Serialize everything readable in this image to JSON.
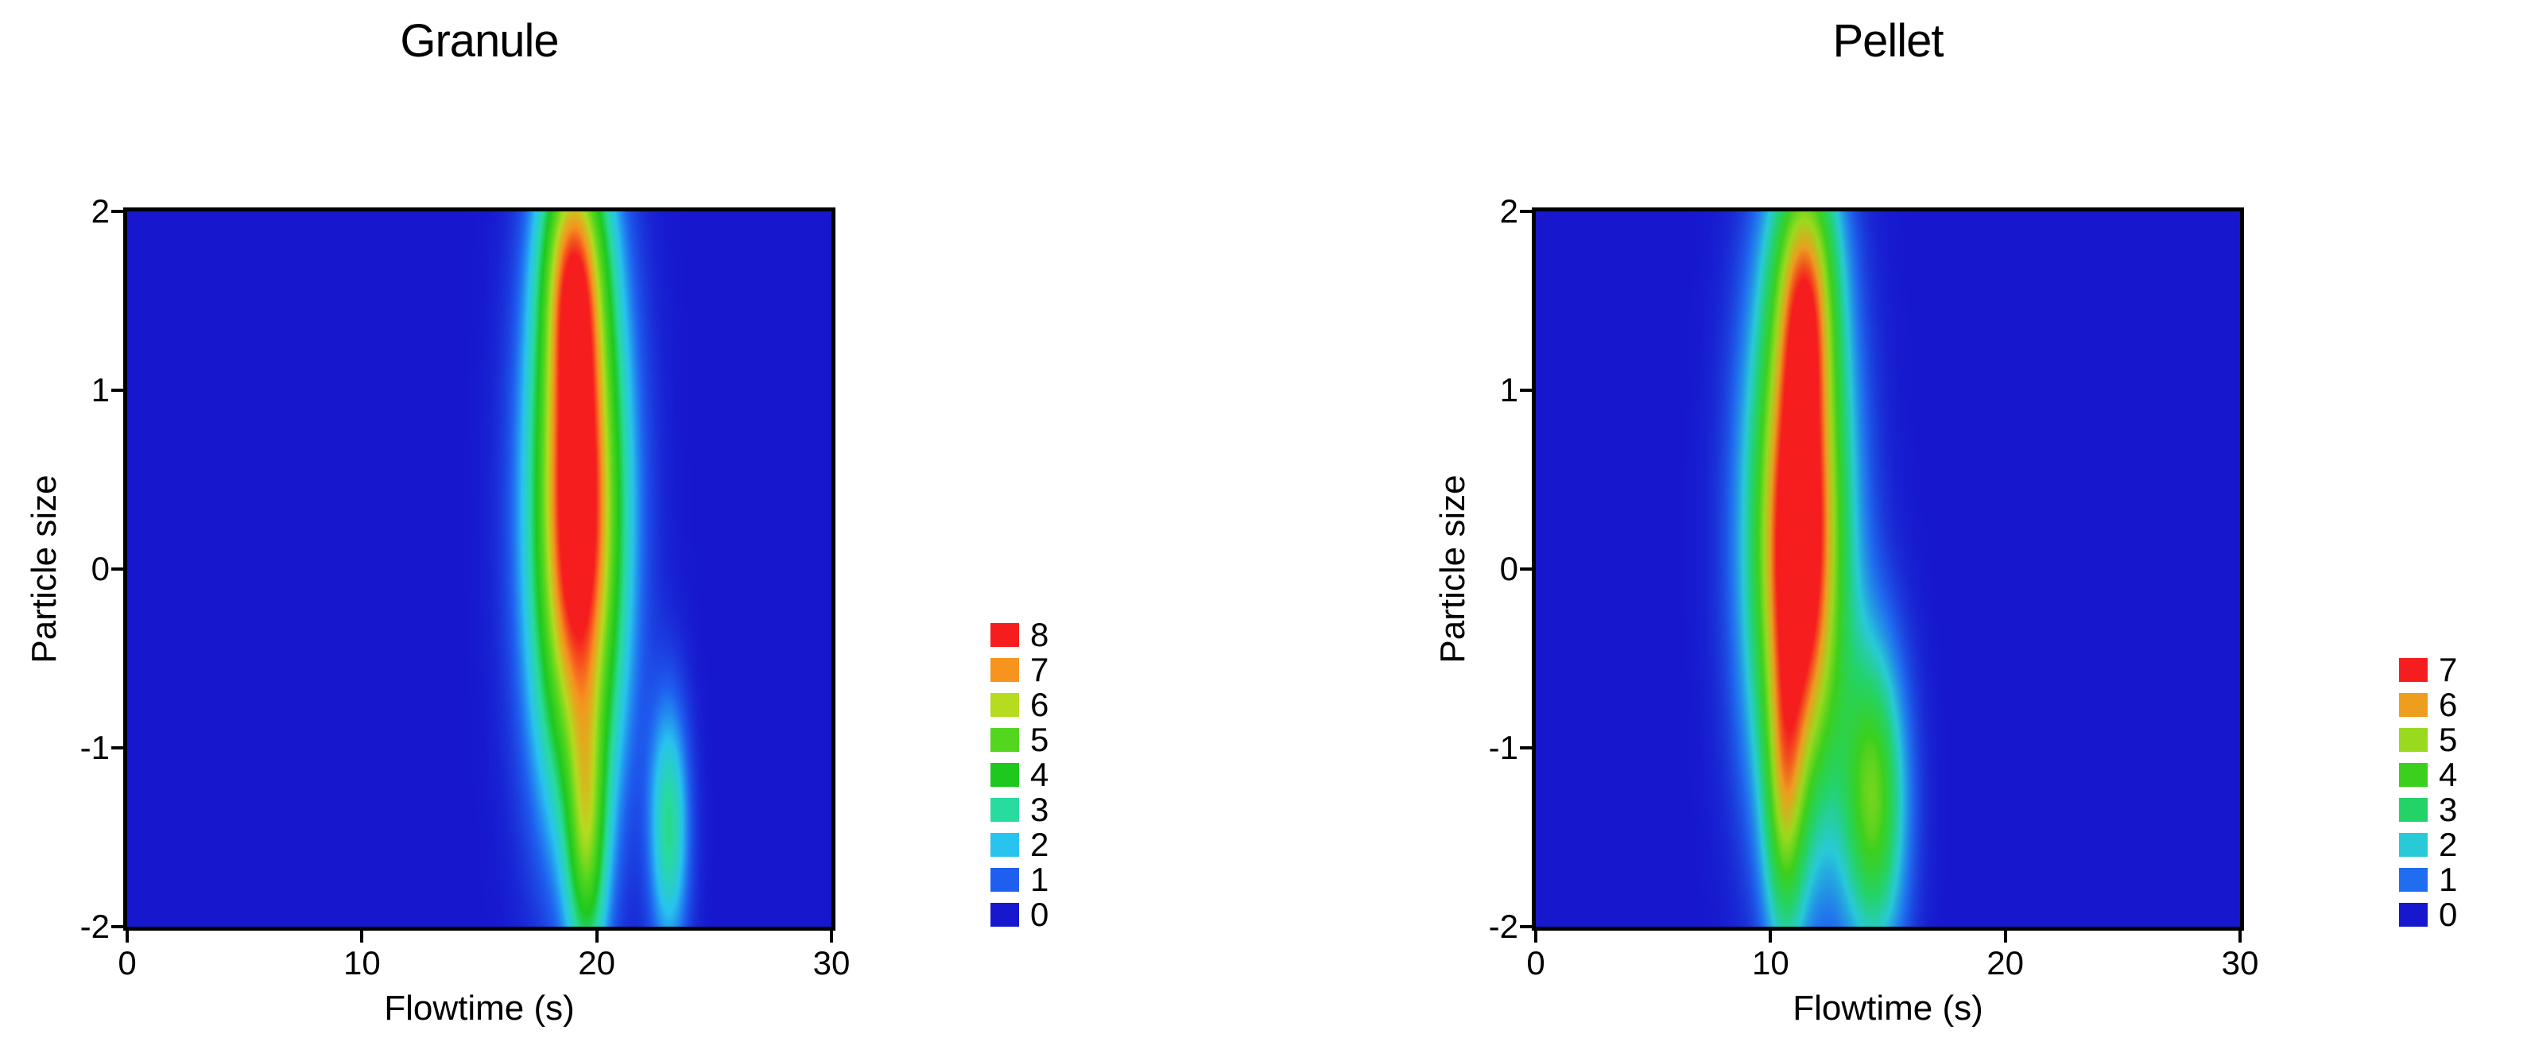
{
  "figure": {
    "background": "#FFFFFF",
    "frame_color": "#000000"
  },
  "chart_data": [
    {
      "type": "heatmap",
      "title": "Granule",
      "xlabel": "Flowtime (s)",
      "ylabel": "Particle size",
      "xlim": [
        0,
        30
      ],
      "ylim": [
        -2,
        2
      ],
      "xticks": [
        0,
        10,
        20,
        30
      ],
      "yticks": [
        2,
        1,
        0,
        -1,
        -2
      ],
      "grid": false,
      "legend_position": "right",
      "colorbar": [
        {
          "value": 8,
          "color": "#F51D1D"
        },
        {
          "value": 7,
          "color": "#F6941E"
        },
        {
          "value": 6,
          "color": "#B5DC1E"
        },
        {
          "value": 5,
          "color": "#52D61E"
        },
        {
          "value": 4,
          "color": "#1EC81E"
        },
        {
          "value": 3,
          "color": "#28DB9E"
        },
        {
          "value": 2,
          "color": "#28C3EF"
        },
        {
          "value": 1,
          "color": "#1F5FEF"
        },
        {
          "value": 0,
          "color": "#1717CE"
        }
      ],
      "density_blobs": [
        {
          "x": 19.2,
          "y": 0.3,
          "sx": 1.35,
          "sy": 1.1,
          "amp": 9.3
        },
        {
          "x": 19.0,
          "y": 1.7,
          "sx": 0.95,
          "sy": 0.55,
          "amp": 4.2
        },
        {
          "x": 19.6,
          "y": -1.55,
          "sx": 0.6,
          "sy": 0.55,
          "amp": 3.6
        },
        {
          "x": 23.1,
          "y": -1.45,
          "sx": 0.6,
          "sy": 0.5,
          "amp": 3.1
        }
      ]
    },
    {
      "type": "heatmap",
      "title": "Pellet",
      "xlabel": "Flowtime (s)",
      "ylabel": "Particle size",
      "xlim": [
        0,
        30
      ],
      "ylim": [
        -2,
        2
      ],
      "xticks": [
        0,
        10,
        20,
        30
      ],
      "yticks": [
        2,
        1,
        0,
        -1,
        -2
      ],
      "grid": false,
      "legend_position": "right",
      "colorbar": [
        {
          "value": 7,
          "color": "#F51D1D"
        },
        {
          "value": 6,
          "color": "#ED9E1E"
        },
        {
          "value": 5,
          "color": "#99DA1E"
        },
        {
          "value": 4,
          "color": "#3CD01E"
        },
        {
          "value": 3,
          "color": "#24D367"
        },
        {
          "value": 2,
          "color": "#28CAD8"
        },
        {
          "value": 1,
          "color": "#206DEF"
        },
        {
          "value": 0,
          "color": "#1717CE"
        }
      ],
      "density_blobs": [
        {
          "x": 11.2,
          "y": 0.15,
          "sx": 1.4,
          "sy": 1.05,
          "amp": 8.6
        },
        {
          "x": 11.5,
          "y": 1.6,
          "sx": 0.95,
          "sy": 0.55,
          "amp": 3.8
        },
        {
          "x": 10.6,
          "y": -1.35,
          "sx": 0.6,
          "sy": 0.6,
          "amp": 2.8
        },
        {
          "x": 14.4,
          "y": -1.3,
          "sx": 0.95,
          "sy": 0.6,
          "amp": 4.3
        }
      ]
    }
  ]
}
